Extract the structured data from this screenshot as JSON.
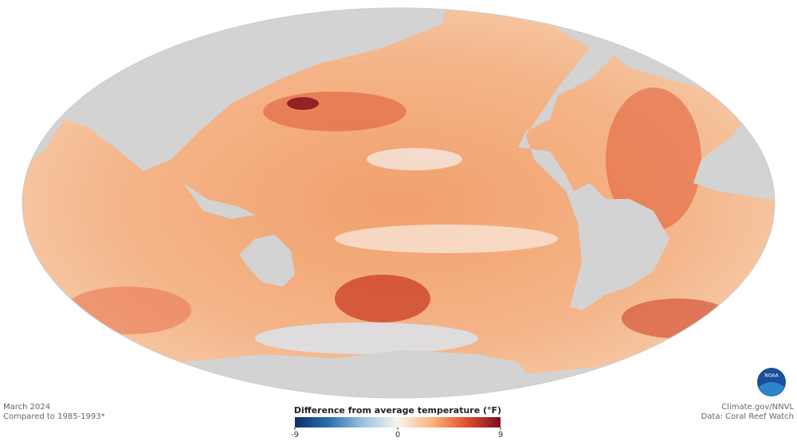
{
  "map": {
    "date": "March 2024",
    "baseline": "Compared to 1985-1993*",
    "credit": "Climate.gov/NNVL",
    "source": "Data: Coral Reef Watch",
    "logo": "NOAA"
  },
  "colorbar": {
    "title": "Difference from average temperature (°F)",
    "lim": [
      -9,
      9
    ],
    "ticks": [
      -9,
      0,
      9
    ],
    "colors": [
      "#0b2f6b",
      "#2c6fb0",
      "#9cc4e2",
      "#f7f4ee",
      "#f9b57a",
      "#e0502e",
      "#7a0c1c"
    ]
  }
}
